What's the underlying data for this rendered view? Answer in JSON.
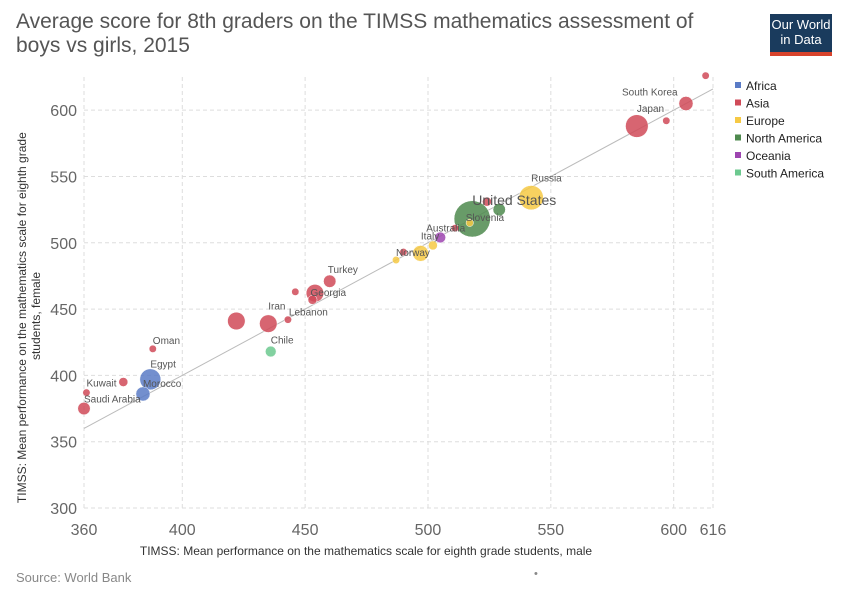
{
  "title": "Average score for 8th graders on the TIMSS mathematics assessment of boys vs girls, 2015",
  "logo": {
    "line1": "Our World",
    "line2": "in Data"
  },
  "source": "Source: World Bank",
  "footnote": "•",
  "colors": {
    "Africa": "#5a7bc6",
    "Asia": "#d04a58",
    "Europe": "#f6c944",
    "North America": "#4e8a4e",
    "Oceania": "#9d45b0",
    "South America": "#6cc98f"
  },
  "chart_data": {
    "type": "scatter",
    "title": "Average score for 8th graders on the TIMSS mathematics assessment of boys vs girls, 2015",
    "xlabel": "TIMSS: Mean performance on the mathematics scale for eighth grade students, male",
    "ylabel": "TIMSS: Mean performance on the mathematics scale for eighth grade students, female",
    "xlim": [
      360,
      616
    ],
    "ylim": [
      300,
      625
    ],
    "x_ticks": [
      360,
      400,
      450,
      500,
      550,
      600,
      616
    ],
    "y_ticks": [
      300,
      350,
      400,
      450,
      500,
      550,
      600
    ],
    "grid": true,
    "legend_position": "top-right",
    "legend": [
      "Africa",
      "Asia",
      "Europe",
      "North America",
      "Oceania",
      "South America"
    ],
    "reference_line": {
      "from": [
        360,
        360
      ],
      "to": [
        616,
        616
      ]
    },
    "points": [
      {
        "label": "",
        "x": 613,
        "y": 626,
        "region": "Asia",
        "size": 2
      },
      {
        "label": "South Korea",
        "x": 605,
        "y": 605,
        "region": "Asia",
        "size": 6
      },
      {
        "label": "",
        "x": 597,
        "y": 592,
        "region": "Asia",
        "size": 2
      },
      {
        "label": "Japan",
        "x": 585,
        "y": 588,
        "region": "Asia",
        "size": 11
      },
      {
        "label": "Russia",
        "x": 542,
        "y": 534,
        "region": "Europe",
        "size": 12
      },
      {
        "label": "",
        "x": 529,
        "y": 525,
        "region": "North America",
        "size": 5
      },
      {
        "label": "",
        "x": 524,
        "y": 531,
        "region": "Asia",
        "size": 3
      },
      {
        "label": "United States",
        "x": 518,
        "y": 518,
        "region": "North America",
        "size": 19
      },
      {
        "label": "Slovenia",
        "x": 517,
        "y": 515,
        "region": "Europe",
        "size": 2
      },
      {
        "label": "",
        "x": 511,
        "y": 511,
        "region": "Asia",
        "size": 2
      },
      {
        "label": "Australia",
        "x": 505,
        "y": 504,
        "region": "Oceania",
        "size": 4
      },
      {
        "label": "Italy",
        "x": 502,
        "y": 498,
        "region": "Europe",
        "size": 3
      },
      {
        "label": "",
        "x": 497,
        "y": 492,
        "region": "Europe",
        "size": 7
      },
      {
        "label": "Norway",
        "x": 487,
        "y": 487,
        "region": "Europe",
        "size": 2
      },
      {
        "label": "",
        "x": 490,
        "y": 493,
        "region": "Asia",
        "size": 2
      },
      {
        "label": "Turkey",
        "x": 460,
        "y": 471,
        "region": "Asia",
        "size": 5
      },
      {
        "label": "",
        "x": 454,
        "y": 462,
        "region": "Asia",
        "size": 8
      },
      {
        "label": "Georgia",
        "x": 453,
        "y": 457,
        "region": "Asia",
        "size": 3
      },
      {
        "label": "",
        "x": 446,
        "y": 463,
        "region": "Asia",
        "size": 2
      },
      {
        "label": "Lebanon",
        "x": 443,
        "y": 442,
        "region": "Asia",
        "size": 2
      },
      {
        "label": "Iran",
        "x": 435,
        "y": 439,
        "region": "Asia",
        "size": 8
      },
      {
        "label": "",
        "x": 422,
        "y": 441,
        "region": "Asia",
        "size": 8
      },
      {
        "label": "Chile",
        "x": 436,
        "y": 418,
        "region": "South America",
        "size": 4
      },
      {
        "label": "Oman",
        "x": 388,
        "y": 420,
        "region": "Asia",
        "size": 2
      },
      {
        "label": "Egypt",
        "x": 387,
        "y": 397,
        "region": "Africa",
        "size": 10
      },
      {
        "label": "Morocco",
        "x": 384,
        "y": 386,
        "region": "Africa",
        "size": 6
      },
      {
        "label": "",
        "x": 376,
        "y": 395,
        "region": "Asia",
        "size": 3
      },
      {
        "label": "Kuwait",
        "x": 361,
        "y": 387,
        "region": "Asia",
        "size": 2
      },
      {
        "label": "Saudi Arabia",
        "x": 360,
        "y": 375,
        "region": "Asia",
        "size": 5
      }
    ]
  }
}
